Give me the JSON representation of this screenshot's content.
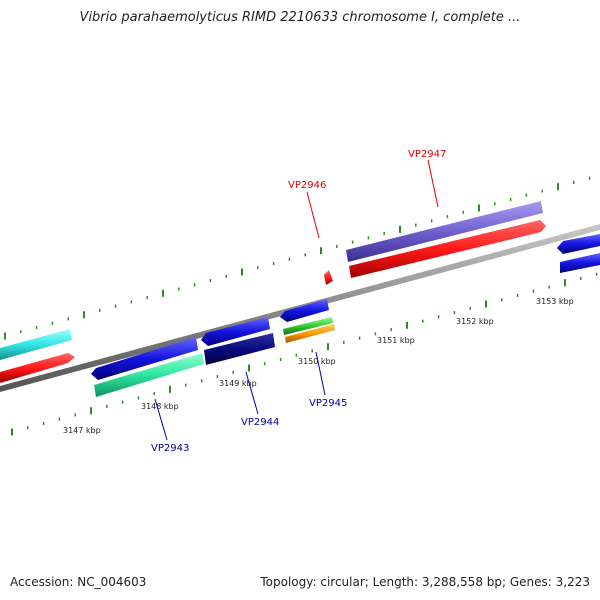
{
  "title": "Vibrio parahaemolyticus RIMD 2210633 chromosome I, complete ...",
  "accession_text": "Accession: NC_004603",
  "summary_text": "Topology: circular; Length: 3,288,558 bp; Genes: 3,223",
  "ticks": [
    {
      "label": "3147 kbp"
    },
    {
      "label": "3148 kbp"
    },
    {
      "label": "3149 kbp"
    },
    {
      "label": "3150 kbp"
    },
    {
      "label": "3151 kbp"
    },
    {
      "label": "3152 kbp"
    },
    {
      "label": "3153 kbp"
    }
  ],
  "gene_labels": [
    {
      "name": "VP2943",
      "color": "#0000aa"
    },
    {
      "name": "VP2944",
      "color": "#0000aa"
    },
    {
      "name": "VP2945",
      "color": "#0000aa"
    },
    {
      "name": "VP2946",
      "color": "#dd0000"
    },
    {
      "name": "VP2947",
      "color": "#dd0000"
    }
  ],
  "colors": {
    "backbone": "#8a8a8a",
    "tick_marks": "#2e8b22",
    "red_gene": "#ff1a1a",
    "blue_gene": "#1515e0",
    "cyan_gene": "#33e6e6",
    "seagreen_gene": "#2ee6a0",
    "navy_gene": "#0a0a80",
    "lime_gene": "#33cc33",
    "orange_gene": "#ff9900",
    "purple_gene": "#7060d0"
  }
}
